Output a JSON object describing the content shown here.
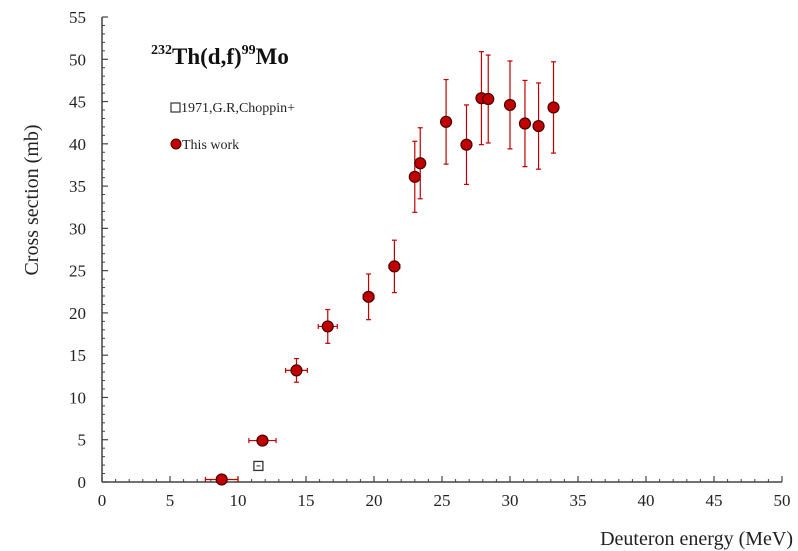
{
  "chart_data": {
    "type": "scatter",
    "title": {
      "mass_number": "232",
      "reaction": "Th(d,f)",
      "product_mass": "99",
      "product": "Mo"
    },
    "xlabel": "Deuteron energy (MeV)",
    "ylabel": "Cross section (mb)",
    "xlim": [
      0,
      50
    ],
    "ylim": [
      0,
      55
    ],
    "x_ticks": [
      0,
      5,
      10,
      15,
      20,
      25,
      30,
      35,
      40,
      45,
      50
    ],
    "y_ticks": [
      0,
      5,
      10,
      15,
      20,
      25,
      30,
      35,
      40,
      45,
      50,
      55
    ],
    "grid": false,
    "legend_position": "top-left",
    "colors": {
      "this_work_fill": "#c00000",
      "this_work_edge": "#4a0000",
      "this_work_errorbar": "#c00000",
      "choppin_edge": "#333333"
    },
    "series": [
      {
        "name": "1971,G.R,Choppin+",
        "marker": "open-square",
        "points": [
          {
            "x": 11.5,
            "y": 1.9,
            "yerr": 0.3
          }
        ]
      },
      {
        "name": "This work",
        "marker": "filled-circle",
        "points": [
          {
            "x": 8.8,
            "y": 0.3,
            "xerr": 1.2,
            "yerr": 0.2
          },
          {
            "x": 11.8,
            "y": 4.9,
            "xerr": 1.0,
            "yerr": 0.5
          },
          {
            "x": 14.3,
            "y": 13.2,
            "xerr": 0.8,
            "yerr": 1.4
          },
          {
            "x": 16.6,
            "y": 18.4,
            "xerr": 0.7,
            "yerr": 2.0
          },
          {
            "x": 19.6,
            "y": 21.9,
            "xerr": 0.4,
            "yerr": 2.7
          },
          {
            "x": 21.5,
            "y": 25.5,
            "xerr": 0.4,
            "yerr": 3.1
          },
          {
            "x": 23.0,
            "y": 36.1,
            "xerr": 0.3,
            "yerr": 4.2
          },
          {
            "x": 23.4,
            "y": 37.7,
            "xerr": 0.3,
            "yerr": 4.2
          },
          {
            "x": 25.3,
            "y": 42.6,
            "xerr": 0.3,
            "yerr": 5.0
          },
          {
            "x": 26.8,
            "y": 39.9,
            "xerr": 0.3,
            "yerr": 4.7
          },
          {
            "x": 27.9,
            "y": 45.4,
            "xerr": 0.3,
            "yerr": 5.5
          },
          {
            "x": 28.4,
            "y": 45.3,
            "xerr": 0.3,
            "yerr": 5.2
          },
          {
            "x": 30.0,
            "y": 44.6,
            "xerr": 0.3,
            "yerr": 5.2
          },
          {
            "x": 31.1,
            "y": 42.4,
            "xerr": 0.3,
            "yerr": 5.1
          },
          {
            "x": 32.1,
            "y": 42.1,
            "xerr": 0.3,
            "yerr": 5.1
          },
          {
            "x": 33.2,
            "y": 44.3,
            "xerr": 0.3,
            "yerr": 5.4
          }
        ]
      }
    ]
  }
}
